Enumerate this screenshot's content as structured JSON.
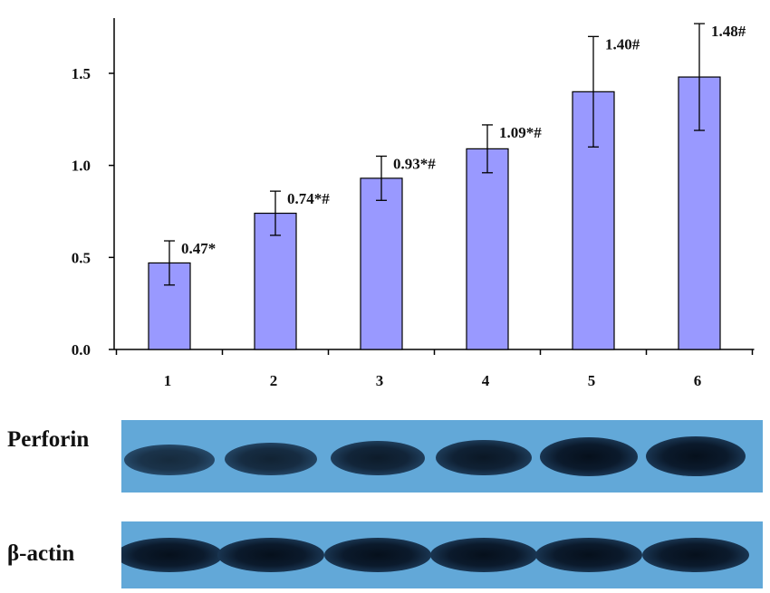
{
  "chart_data": {
    "type": "bar",
    "categories": [
      "1",
      "2",
      "3",
      "4",
      "5",
      "6"
    ],
    "values": [
      0.47,
      0.74,
      0.93,
      1.09,
      1.4,
      1.48
    ],
    "errors": [
      0.12,
      0.12,
      0.12,
      0.13,
      0.3,
      0.29
    ],
    "data_labels": [
      "0.47*",
      "0.74*#",
      "0.93*#",
      "1.09*#",
      "1.40#",
      "1.48#"
    ],
    "y_ticks": [
      "0.0",
      "0.5",
      "1.0",
      "1.5"
    ],
    "ylim": [
      0,
      1.75
    ],
    "bar_color": "#9999ff",
    "grid": false,
    "title": "",
    "xlabel": "",
    "ylabel": ""
  },
  "blot": {
    "rows": [
      {
        "label": "Perforin",
        "band_intensity": [
          0.55,
          0.65,
          0.75,
          0.8,
          0.95,
          1.0
        ]
      },
      {
        "label": "β-actin",
        "band_intensity": [
          0.9,
          0.9,
          0.95,
          0.9,
          0.9,
          0.9
        ]
      }
    ]
  }
}
